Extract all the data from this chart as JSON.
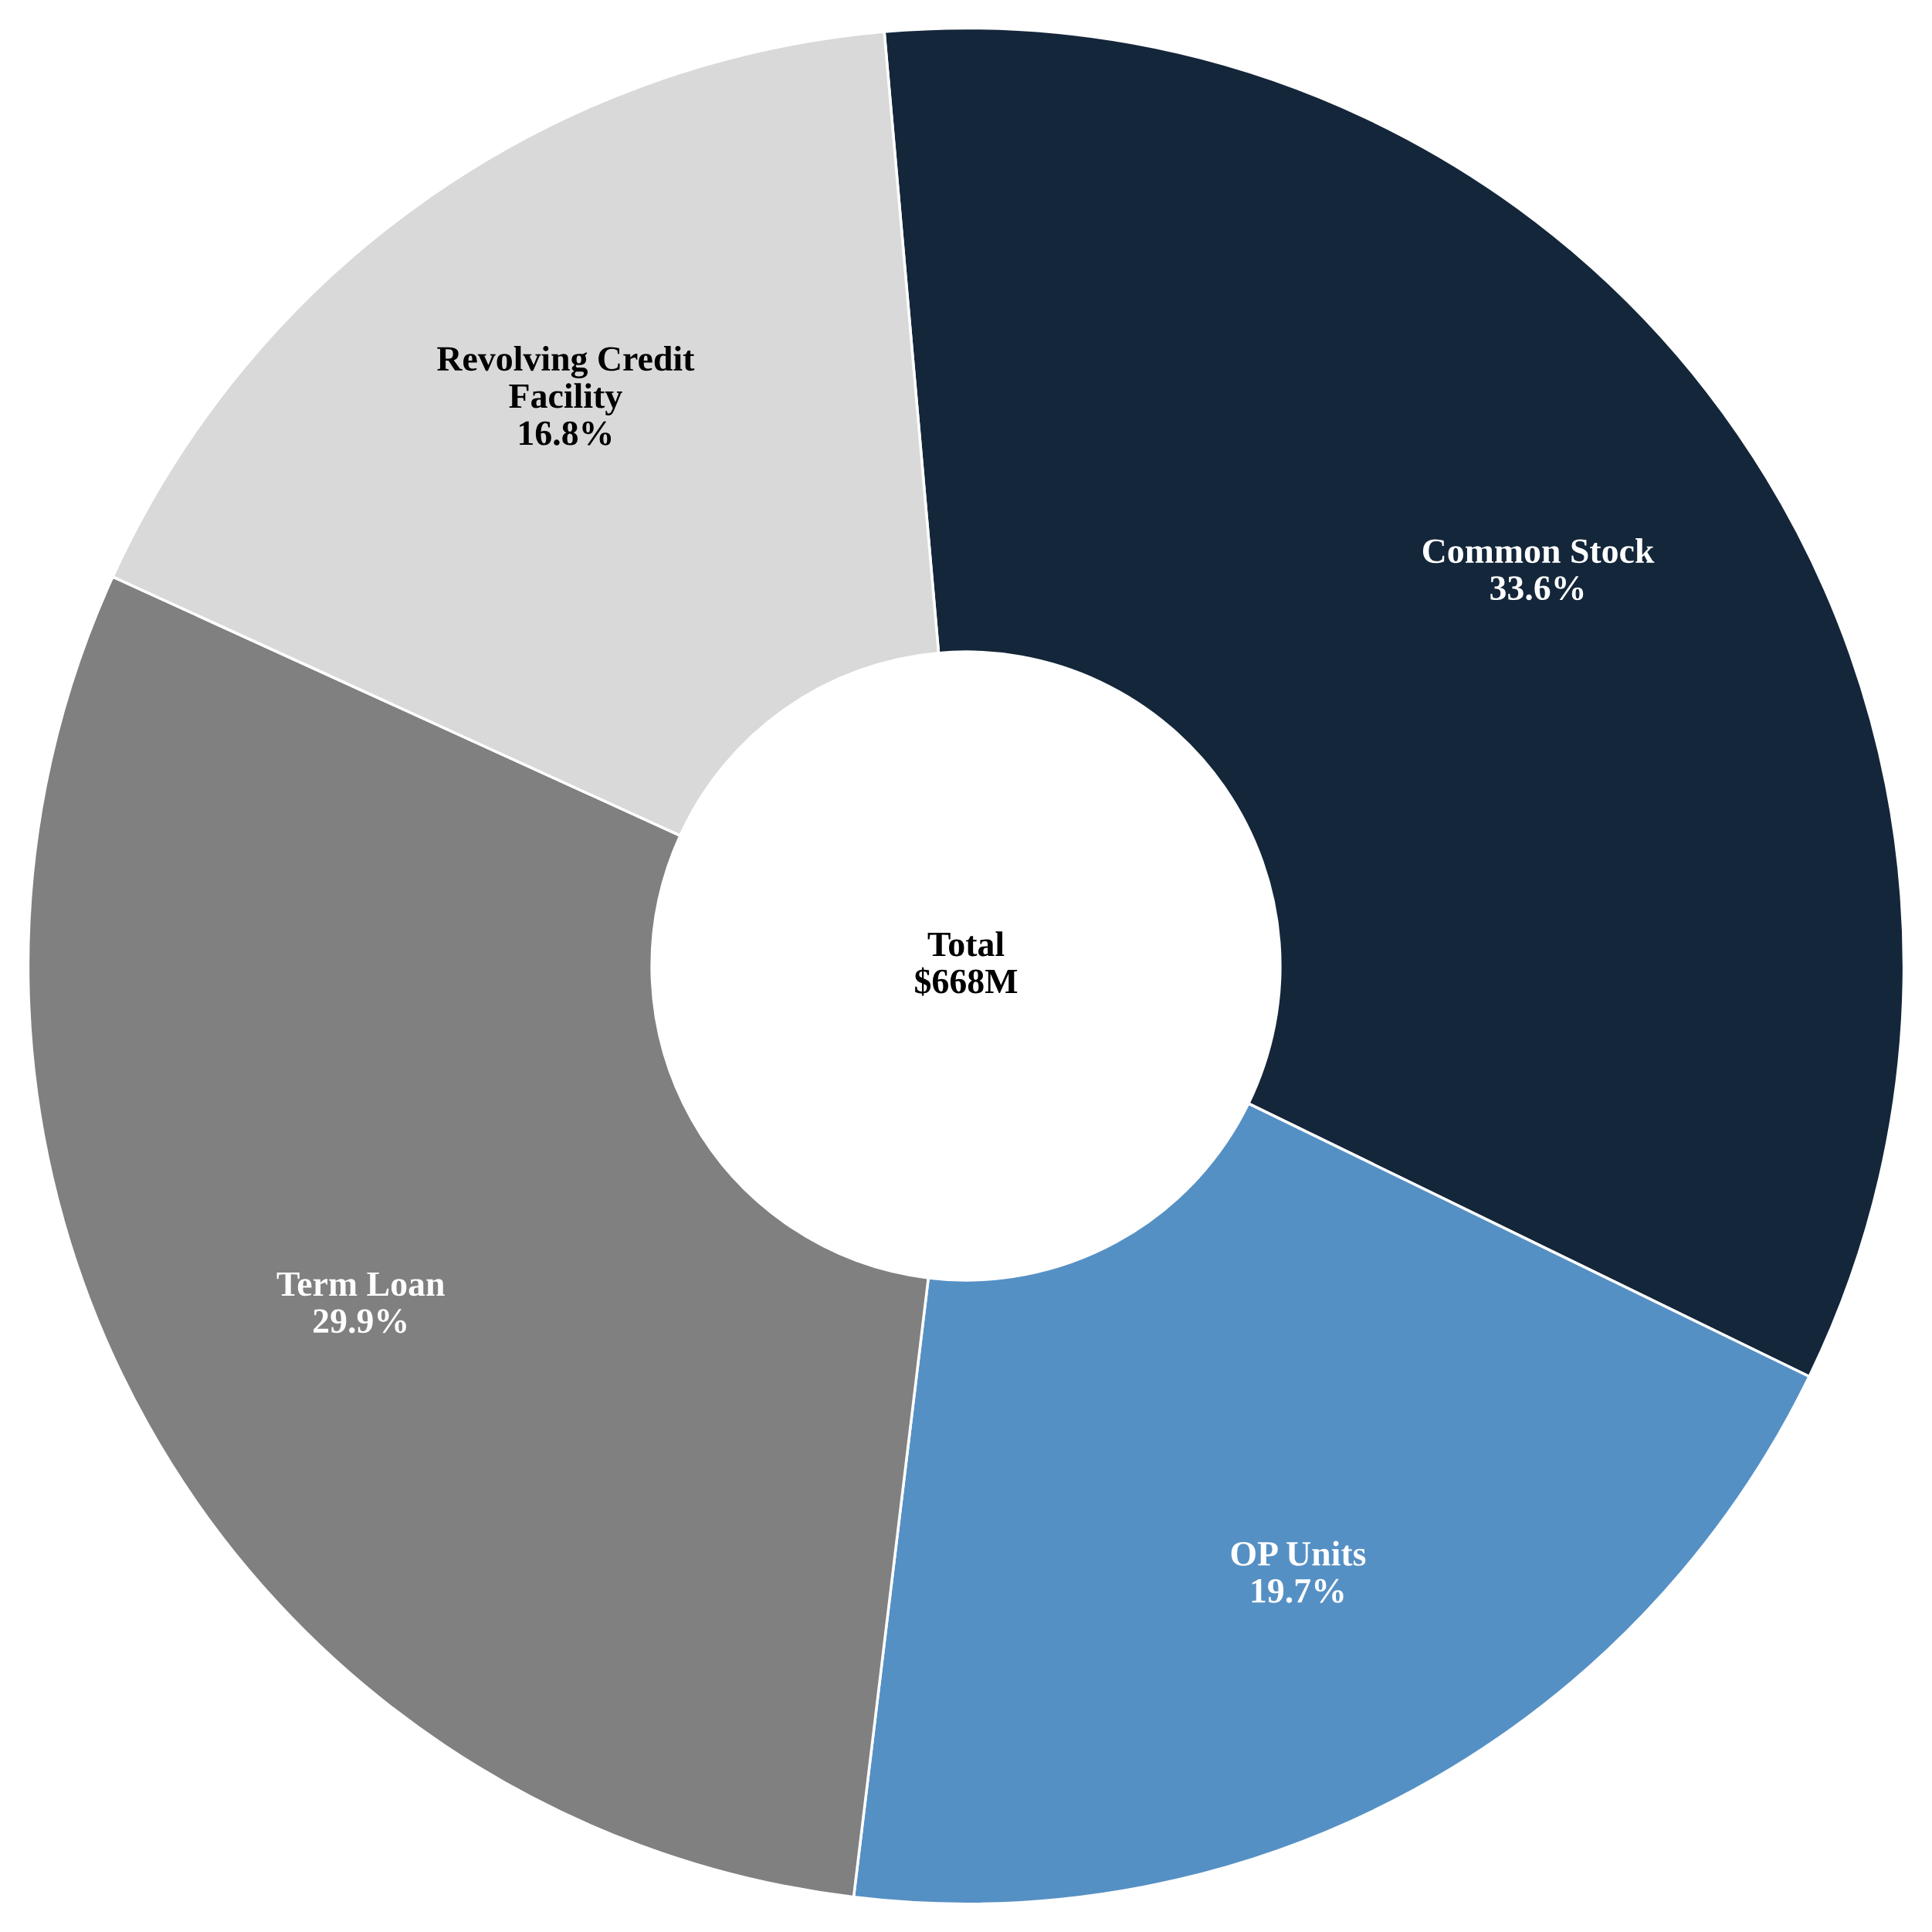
{
  "chart_data": {
    "type": "donut",
    "categories": [
      "Common Stock",
      "OP Units",
      "Term Loan",
      "Revolving Credit\nFacility"
    ],
    "values": [
      33.6,
      19.7,
      29.9,
      16.8
    ],
    "colors": [
      "#14263a",
      "#5590c4",
      "#808080",
      "#d9d9d9"
    ],
    "value_labels": [
      "33.6%",
      "19.7%",
      "29.9%",
      "16.8%"
    ],
    "annotations": [
      "Total\n$668M"
    ]
  }
}
